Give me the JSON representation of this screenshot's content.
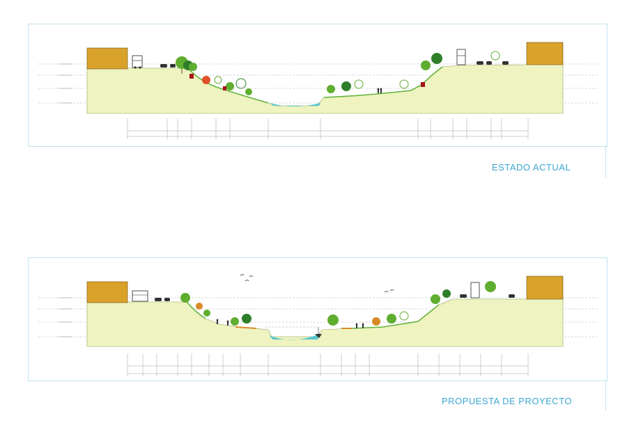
{
  "sections": {
    "current": {
      "caption": "ESTADO ACTUAL"
    },
    "proposal": {
      "caption": "PROPUESTA DE PROYECTO"
    }
  },
  "colors": {
    "frame": "#bfe1ef",
    "caption": "#3aa6d2",
    "terrain_fill": "#eef3c0",
    "terrain_edge": "#8ea35a",
    "building": "#d9a22a",
    "water": "#57c6cf",
    "grass": "#63b33a",
    "tree_green": "#5fae2f",
    "tree_dark": "#2f7f2a",
    "retaining_red": "#a8121b",
    "path_orange": "#d98a28"
  },
  "icons": [
    "bus-icon",
    "car-icon",
    "truck-icon",
    "pedestrian-icon",
    "tree-icon",
    "bird-icon",
    "boat-icon"
  ]
}
